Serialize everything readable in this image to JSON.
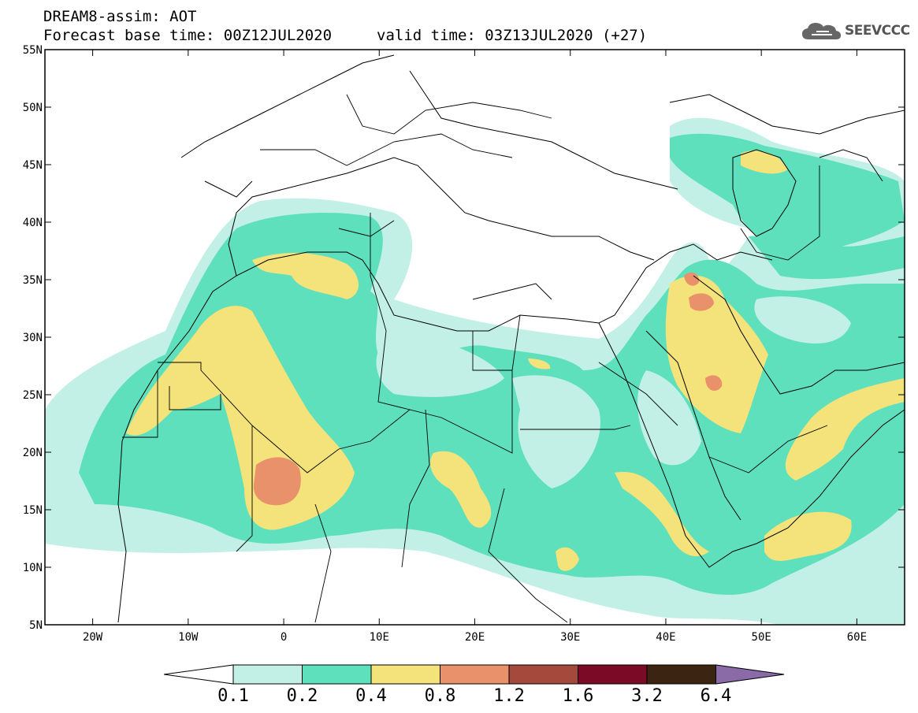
{
  "header": {
    "line1": "DREAM8-assim: AOT",
    "line2": "Forecast base time: 00Z12JUL2020",
    "valid": "valid time: 03Z13JUL2020 (+27)"
  },
  "logo": {
    "text": "SEEVCCC",
    "icon": "cloud-icon"
  },
  "map": {
    "region": "North Africa, Europe and Middle East",
    "lon_range": [
      -25,
      65
    ],
    "lat_range": [
      5,
      55
    ],
    "lat_ticks": [
      "55N",
      "50N",
      "45N",
      "40N",
      "35N",
      "30N",
      "25N",
      "20N",
      "15N",
      "10N",
      "5N"
    ],
    "lon_ticks": [
      "20W",
      "10W",
      "0",
      "10E",
      "20E",
      "30E",
      "40E",
      "50E",
      "60E"
    ]
  },
  "colorbar": {
    "labels": [
      "0.1",
      "0.2",
      "0.4",
      "0.8",
      "1.2",
      "1.6",
      "3.2",
      "6.4"
    ],
    "colors": [
      "#ffffff",
      "#c2f0e6",
      "#5ee0bc",
      "#f4e27a",
      "#e8916a",
      "#a5493c",
      "#7a0a25",
      "#3b2412",
      "#8b6aa8"
    ]
  }
}
